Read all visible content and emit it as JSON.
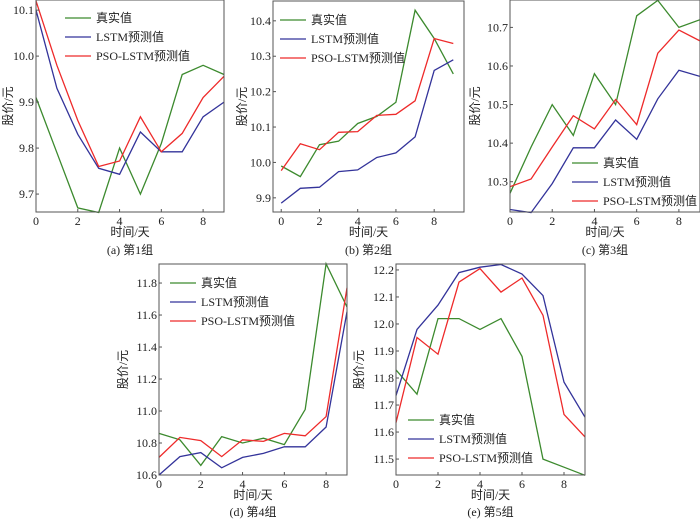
{
  "colors": {
    "actual": "#3c8a2e",
    "lstm": "#33339a",
    "pso": "#ee2a2a",
    "axis": "#555555"
  },
  "legend": [
    "真实值",
    "LSTM预测值",
    "PSO-LSTM预测值"
  ],
  "chart_data": [
    {
      "type": "line",
      "title": "(a) 第1组",
      "xlabel": "时间/天",
      "ylabel": "股价/元",
      "legend": "top-left",
      "xlim": [
        0,
        9
      ],
      "ylim": [
        9.661,
        10.122
      ],
      "xticks": [
        0,
        2,
        4,
        6,
        8
      ],
      "yticks": [
        9.7,
        9.8,
        9.9,
        10.0,
        10.1
      ],
      "x": [
        0,
        1,
        2,
        3,
        4,
        5,
        6,
        7,
        8,
        9
      ],
      "series": [
        {
          "name": "真实值",
          "values": [
            9.91,
            9.79,
            9.67,
            9.66,
            9.8,
            9.7,
            9.81,
            9.96,
            9.98,
            9.96
          ]
        },
        {
          "name": "LSTM预测值",
          "values": [
            10.1,
            9.93,
            9.83,
            9.756,
            9.743,
            9.835,
            9.792,
            9.792,
            9.868,
            9.9
          ]
        },
        {
          "name": "PSO-LSTM预测值",
          "values": [
            10.12,
            9.98,
            9.86,
            9.76,
            9.772,
            9.868,
            9.792,
            9.832,
            9.91,
            9.956
          ]
        }
      ]
    },
    {
      "type": "line",
      "title": "(b) 第2组",
      "xlabel": "时间/天",
      "ylabel": "股价/元",
      "legend": "top-left",
      "xlim": [
        -0.43,
        9.56
      ],
      "ylim": [
        9.86,
        10.456
      ],
      "xticks": [
        0,
        2,
        4,
        6,
        8
      ],
      "yticks": [
        9.9,
        10.0,
        10.1,
        10.2,
        10.3,
        10.4
      ],
      "x": [
        0,
        1,
        2,
        3,
        4,
        5,
        6,
        7,
        8,
        9
      ],
      "series": [
        {
          "name": "真实值",
          "values": [
            9.99,
            9.96,
            10.05,
            10.06,
            10.11,
            10.13,
            10.17,
            10.43,
            10.35,
            10.25
          ]
        },
        {
          "name": "LSTM预测值",
          "values": [
            9.885,
            9.927,
            9.93,
            9.974,
            9.979,
            10.014,
            10.027,
            10.072,
            10.26,
            10.29
          ]
        },
        {
          "name": "PSO-LSTM预测值",
          "values": [
            9.977,
            10.053,
            10.036,
            10.085,
            10.087,
            10.133,
            10.136,
            10.174,
            10.35,
            10.336
          ]
        }
      ]
    },
    {
      "type": "line",
      "title": "(c) 第3组",
      "xlabel": "时间/天",
      "ylabel": "股价/元",
      "legend": "bottom-right",
      "xlim": [
        0,
        9
      ],
      "ylim": [
        10.2215,
        10.771
      ],
      "xticks": [
        0,
        2,
        4,
        6,
        8
      ],
      "yticks": [
        10.3,
        10.4,
        10.5,
        10.6,
        10.7
      ],
      "x": [
        0,
        1,
        2,
        3,
        4,
        5,
        6,
        7,
        8,
        9
      ],
      "series": [
        {
          "name": "真实值",
          "values": [
            10.27,
            10.39,
            10.5,
            10.42,
            10.58,
            10.5,
            10.73,
            10.77,
            10.7,
            10.72
          ]
        },
        {
          "name": "LSTM预测值",
          "values": [
            10.228,
            10.22,
            10.295,
            10.388,
            10.388,
            10.46,
            10.41,
            10.515,
            10.589,
            10.573
          ]
        },
        {
          "name": "PSO-LSTM预测值",
          "values": [
            10.287,
            10.307,
            10.39,
            10.471,
            10.437,
            10.513,
            10.448,
            10.633,
            10.693,
            10.665
          ]
        }
      ]
    },
    {
      "type": "line",
      "title": "(d) 第4组",
      "xlabel": "时间/天",
      "ylabel": "股价/元",
      "legend": "top-left",
      "xlim": [
        0,
        9
      ],
      "ylim": [
        10.6,
        11.919
      ],
      "xticks": [
        0,
        2,
        4,
        6,
        8
      ],
      "yticks": [
        10.6,
        10.8,
        11.0,
        11.2,
        11.4,
        11.6,
        11.8
      ],
      "x": [
        0,
        1,
        2,
        3,
        4,
        5,
        6,
        7,
        8,
        9
      ],
      "series": [
        {
          "name": "真实值",
          "values": [
            10.86,
            10.82,
            10.66,
            10.84,
            10.8,
            10.83,
            10.79,
            11.01,
            11.92,
            11.65
          ]
        },
        {
          "name": "LSTM预测值",
          "values": [
            10.6,
            10.715,
            10.74,
            10.645,
            10.71,
            10.735,
            10.776,
            10.776,
            10.9,
            11.62
          ]
        },
        {
          "name": "PSO-LSTM预测值",
          "values": [
            10.71,
            10.835,
            10.815,
            10.715,
            10.82,
            10.81,
            10.86,
            10.845,
            10.965,
            11.77
          ]
        }
      ]
    },
    {
      "type": "line",
      "title": "(e) 第5组",
      "xlabel": "时间/天",
      "ylabel": "股价/元",
      "legend": "bottom-left",
      "xlim": [
        0,
        9
      ],
      "ylim": [
        11.441,
        12.222
      ],
      "xticks": [
        0,
        2,
        4,
        6,
        8
      ],
      "yticks": [
        11.5,
        11.6,
        11.7,
        11.8,
        11.9,
        12.0,
        12.1,
        12.2
      ],
      "x": [
        0,
        1,
        2,
        3,
        4,
        5,
        6,
        7,
        8,
        9
      ],
      "series": [
        {
          "name": "真实值",
          "values": [
            11.83,
            11.74,
            12.02,
            12.02,
            11.98,
            12.02,
            11.88,
            11.5,
            11.47,
            11.44
          ]
        },
        {
          "name": "LSTM预测值",
          "values": [
            11.735,
            11.98,
            12.07,
            12.19,
            12.21,
            12.22,
            12.185,
            12.105,
            11.785,
            11.655
          ]
        },
        {
          "name": "PSO-LSTM预测值",
          "values": [
            11.635,
            11.95,
            11.888,
            12.155,
            12.205,
            12.118,
            12.17,
            12.032,
            11.665,
            11.582
          ]
        }
      ]
    }
  ]
}
